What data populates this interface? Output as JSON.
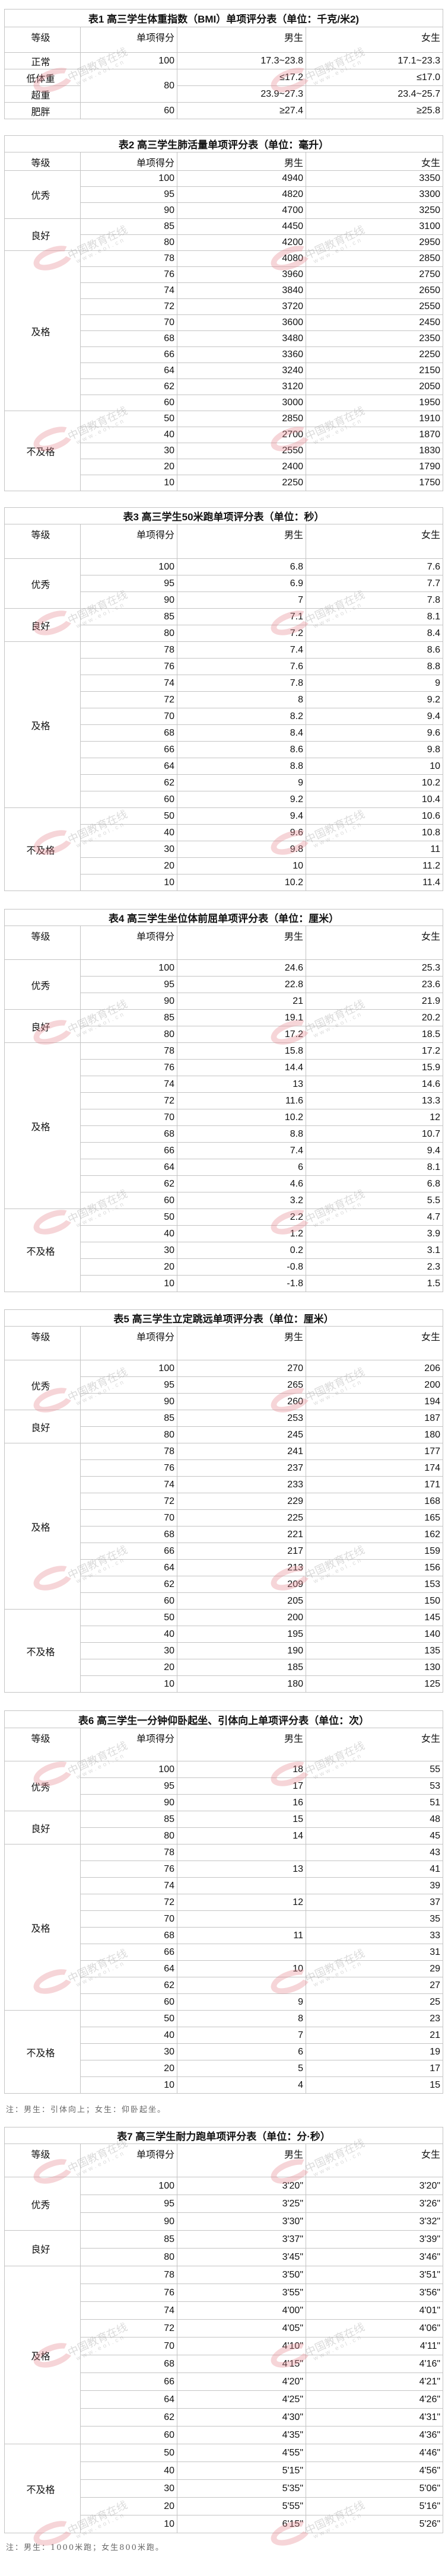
{
  "watermark": {
    "text": "中国教育在线",
    "url": "www.eol.cn"
  },
  "headers": {
    "grade": "等级",
    "score": "单项得分",
    "male": "男生",
    "female": "女生"
  },
  "tables": [
    {
      "title": "表1 高三学生体重指数（BMI）单项评分表（单位：千克/米2)",
      "rows": [
        {
          "grade": "正常",
          "score": "100",
          "male": "17.3~23.8",
          "female": "17.1~23.3"
        },
        {
          "grade": "低体重",
          "score": "80",
          "male": "≤17.2",
          "female": "≤17.0"
        },
        {
          "grade": "超重",
          "score": "80",
          "male": "23.9~27.3",
          "female": "23.4~25.7"
        },
        {
          "grade": "肥胖",
          "score": "60",
          "male": "≥27.4",
          "female": "≥25.8"
        }
      ]
    },
    {
      "title": "表2 高三学生肺活量单项评分表（单位：毫升）",
      "groups": [
        {
          "grade": "优秀",
          "rows": [
            [
              "100",
              "4940",
              "3350"
            ],
            [
              "95",
              "4820",
              "3300"
            ],
            [
              "90",
              "4700",
              "3250"
            ]
          ]
        },
        {
          "grade": "良好",
          "rows": [
            [
              "85",
              "4450",
              "3100"
            ],
            [
              "80",
              "4200",
              "2950"
            ]
          ]
        },
        {
          "grade": "及格",
          "rows": [
            [
              "78",
              "4080",
              "2850"
            ],
            [
              "76",
              "3960",
              "2750"
            ],
            [
              "74",
              "3840",
              "2650"
            ],
            [
              "72",
              "3720",
              "2550"
            ],
            [
              "70",
              "3600",
              "2450"
            ],
            [
              "68",
              "3480",
              "2350"
            ],
            [
              "66",
              "3360",
              "2250"
            ],
            [
              "64",
              "3240",
              "2150"
            ],
            [
              "62",
              "3120",
              "2050"
            ],
            [
              "60",
              "3000",
              "1950"
            ]
          ]
        },
        {
          "grade": "不及格",
          "rows": [
            [
              "50",
              "2850",
              "1910"
            ],
            [
              "40",
              "2700",
              "1870"
            ],
            [
              "30",
              "2550",
              "1830"
            ],
            [
              "20",
              "2400",
              "1790"
            ],
            [
              "10",
              "2250",
              "1750"
            ]
          ]
        }
      ]
    },
    {
      "title": "表3  高三学生50米跑单项评分表（单位：秒）",
      "groups": [
        {
          "grade": "优秀",
          "rows": [
            [
              "100",
              "6.8",
              "7.6"
            ],
            [
              "95",
              "6.9",
              "7.7"
            ],
            [
              "90",
              "7",
              "7.8"
            ]
          ]
        },
        {
          "grade": "良好",
          "rows": [
            [
              "85",
              "7.1",
              "8.1"
            ],
            [
              "80",
              "7.2",
              "8.4"
            ]
          ]
        },
        {
          "grade": "及格",
          "rows": [
            [
              "78",
              "7.4",
              "8.6"
            ],
            [
              "76",
              "7.6",
              "8.8"
            ],
            [
              "74",
              "7.8",
              "9"
            ],
            [
              "72",
              "8",
              "9.2"
            ],
            [
              "70",
              "8.2",
              "9.4"
            ],
            [
              "68",
              "8.4",
              "9.6"
            ],
            [
              "66",
              "8.6",
              "9.8"
            ],
            [
              "64",
              "8.8",
              "10"
            ],
            [
              "62",
              "9",
              "10.2"
            ],
            [
              "60",
              "9.2",
              "10.4"
            ]
          ]
        },
        {
          "grade": "不及格",
          "rows": [
            [
              "50",
              "9.4",
              "10.6"
            ],
            [
              "40",
              "9.6",
              "10.8"
            ],
            [
              "30",
              "9.8",
              "11"
            ],
            [
              "20",
              "10",
              "11.2"
            ],
            [
              "10",
              "10.2",
              "11.4"
            ]
          ]
        }
      ]
    },
    {
      "title": "表4  高三学生坐位体前屈单项评分表（单位：厘米）",
      "groups": [
        {
          "grade": "优秀",
          "rows": [
            [
              "100",
              "24.6",
              "25.3"
            ],
            [
              "95",
              "22.8",
              "23.6"
            ],
            [
              "90",
              "21",
              "21.9"
            ]
          ]
        },
        {
          "grade": "良好",
          "rows": [
            [
              "85",
              "19.1",
              "20.2"
            ],
            [
              "80",
              "17.2",
              "18.5"
            ]
          ]
        },
        {
          "grade": "及格",
          "rows": [
            [
              "78",
              "15.8",
              "17.2"
            ],
            [
              "76",
              "14.4",
              "15.9"
            ],
            [
              "74",
              "13",
              "14.6"
            ],
            [
              "72",
              "11.6",
              "13.3"
            ],
            [
              "70",
              "10.2",
              "12"
            ],
            [
              "68",
              "8.8",
              "10.7"
            ],
            [
              "66",
              "7.4",
              "9.4"
            ],
            [
              "64",
              "6",
              "8.1"
            ],
            [
              "62",
              "4.6",
              "6.8"
            ],
            [
              "60",
              "3.2",
              "5.5"
            ]
          ]
        },
        {
          "grade": "不及格",
          "rows": [
            [
              "50",
              "2.2",
              "4.7"
            ],
            [
              "40",
              "1.2",
              "3.9"
            ],
            [
              "30",
              "0.2",
              "3.1"
            ],
            [
              "20",
              "-0.8",
              "2.3"
            ],
            [
              "10",
              "-1.8",
              "1.5"
            ]
          ]
        }
      ]
    },
    {
      "title": "表5  高三学生立定跳远单项评分表（单位：厘米）",
      "groups": [
        {
          "grade": "优秀",
          "rows": [
            [
              "100",
              "270",
              "206"
            ],
            [
              "95",
              "265",
              "200"
            ],
            [
              "90",
              "260",
              "194"
            ]
          ]
        },
        {
          "grade": "良好",
          "rows": [
            [
              "85",
              "253",
              "187"
            ],
            [
              "80",
              "245",
              "180"
            ]
          ]
        },
        {
          "grade": "及格",
          "rows": [
            [
              "78",
              "241",
              "177"
            ],
            [
              "76",
              "237",
              "174"
            ],
            [
              "74",
              "233",
              "171"
            ],
            [
              "72",
              "229",
              "168"
            ],
            [
              "70",
              "225",
              "165"
            ],
            [
              "68",
              "221",
              "162"
            ],
            [
              "66",
              "217",
              "159"
            ],
            [
              "64",
              "213",
              "156"
            ],
            [
              "62",
              "209",
              "153"
            ],
            [
              "60",
              "205",
              "150"
            ]
          ]
        },
        {
          "grade": "不及格",
          "rows": [
            [
              "50",
              "200",
              "145"
            ],
            [
              "40",
              "195",
              "140"
            ],
            [
              "30",
              "190",
              "135"
            ],
            [
              "20",
              "185",
              "130"
            ],
            [
              "10",
              "180",
              "125"
            ]
          ]
        }
      ]
    },
    {
      "title": "表6 高三学生一分钟仰卧起坐、引体向上单项评分表（单位：次）",
      "note": "注：男生：引体向上；女生：仰卧起坐。",
      "groups": [
        {
          "grade": "优秀",
          "rows": [
            [
              "100",
              "18",
              "55"
            ],
            [
              "95",
              "17",
              "53"
            ],
            [
              "90",
              "16",
              "51"
            ]
          ]
        },
        {
          "grade": "良好",
          "rows": [
            [
              "85",
              "15",
              "48"
            ],
            [
              "80",
              "14",
              "45"
            ]
          ]
        },
        {
          "grade": "及格",
          "rows": [
            [
              "78",
              "",
              "43"
            ],
            [
              "76",
              "13",
              "41"
            ],
            [
              "74",
              "",
              "39"
            ],
            [
              "72",
              "12",
              "37"
            ],
            [
              "70",
              "",
              "35"
            ],
            [
              "68",
              "11",
              "33"
            ],
            [
              "66",
              "",
              "31"
            ],
            [
              "64",
              "10",
              "29"
            ],
            [
              "62",
              "",
              "27"
            ],
            [
              "60",
              "9",
              "25"
            ]
          ]
        },
        {
          "grade": "不及格",
          "rows": [
            [
              "50",
              "8",
              "23"
            ],
            [
              "40",
              "7",
              "21"
            ],
            [
              "30",
              "6",
              "19"
            ],
            [
              "20",
              "5",
              "17"
            ],
            [
              "10",
              "4",
              "15"
            ]
          ]
        }
      ]
    },
    {
      "title": "表7 高三学生耐力跑单项评分表（单位：分·秒）",
      "note": "注：男生：1000米跑；女生800米跑。",
      "groups": [
        {
          "grade": "优秀",
          "rows": [
            [
              "100",
              "3'20\"",
              "3'20\""
            ],
            [
              "95",
              "3'25\"",
              "3'26\""
            ],
            [
              "90",
              "3'30\"",
              "3'32\""
            ]
          ]
        },
        {
          "grade": "良好",
          "rows": [
            [
              "85",
              "3'37\"",
              "3'39\""
            ],
            [
              "80",
              "3'45\"",
              "3'46\""
            ]
          ]
        },
        {
          "grade": "及格",
          "rows": [
            [
              "78",
              "3'50\"",
              "3'51\""
            ],
            [
              "76",
              "3'55\"",
              "3'56\""
            ],
            [
              "74",
              "4'00\"",
              "4'01\""
            ],
            [
              "72",
              "4'05\"",
              "4'06\""
            ],
            [
              "70",
              "4'10\"",
              "4'11\""
            ],
            [
              "68",
              "4'15\"",
              "4'16\""
            ],
            [
              "66",
              "4'20\"",
              "4'21\""
            ],
            [
              "64",
              "4'25\"",
              "4'26\""
            ],
            [
              "62",
              "4'30\"",
              "4'31\""
            ],
            [
              "60",
              "4'35\"",
              "4'36\""
            ]
          ]
        },
        {
          "grade": "不及格",
          "rows": [
            [
              "50",
              "4'55\"",
              "4'46\""
            ],
            [
              "40",
              "5'15\"",
              "4'56\""
            ],
            [
              "30",
              "5'35\"",
              "5'06\""
            ],
            [
              "20",
              "5'55\"",
              "5'16\""
            ],
            [
              "10",
              "6'15\"",
              "5'26\""
            ]
          ]
        }
      ]
    }
  ]
}
